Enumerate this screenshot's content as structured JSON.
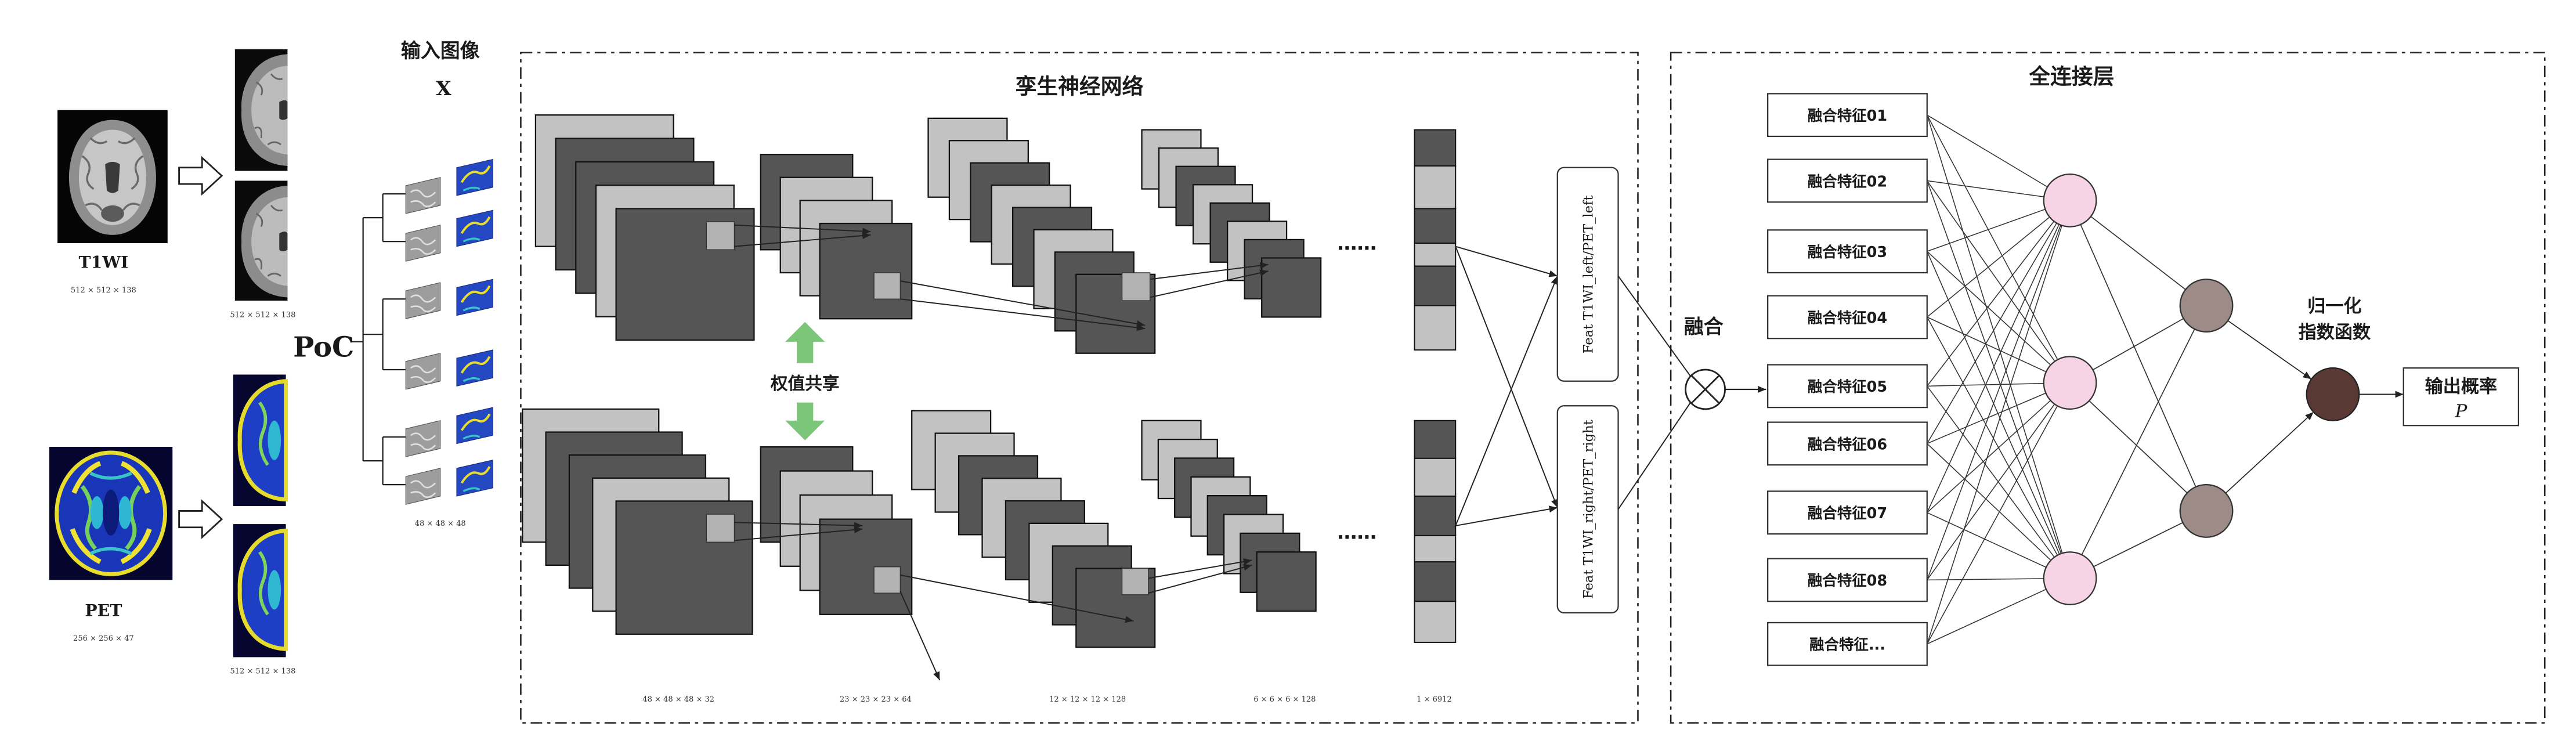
{
  "input": {
    "title": "输入图像",
    "symbol": "X"
  },
  "t1wi": {
    "label": "T1WI",
    "volume_dims": "512 × 512 × 138",
    "slice_dims": "512 × 512 × 138"
  },
  "pet": {
    "label": "PET",
    "volume_dims": "256 × 256 × 47",
    "slice_dims": "512 × 512 × 138"
  },
  "poc_label": "PoC",
  "patch_dims": "48 × 48 × 48",
  "siamese": {
    "title": "孪生神经网络",
    "weight_sharing": "权值共享",
    "ellipsis": "……",
    "layer_dims": [
      "48 × 48 × 48 × 32",
      "23 × 23 × 23 × 64",
      "12 × 12 × 12 × 128",
      "6 × 6 × 6 × 128",
      "1 × 6912"
    ],
    "feature_left": "Feat T1WI_left/PET_left",
    "feature_right": "Feat T1WI_right/PET_right"
  },
  "fusion_label": "融合",
  "fc": {
    "title": "全连接层",
    "features": [
      "融合特征01",
      "融合特征02",
      "融合特征03",
      "融合特征04",
      "融合特征05",
      "融合特征06",
      "融合特征07",
      "融合特征08",
      "融合特征..."
    ],
    "softmax_label": [
      "归一化",
      "指数函数"
    ],
    "output_label": "输出概率",
    "output_symbol": "P"
  },
  "colors": {
    "layer_dark": "#555555",
    "layer_light": "#c2c2c2",
    "patch": "#b3b3b3",
    "weight_sharing_arrow": "#7cc67a",
    "hidden_node_1": "#f7d3e6",
    "hidden_node_2": "#9c8b87",
    "output_node": "#5a3934"
  }
}
